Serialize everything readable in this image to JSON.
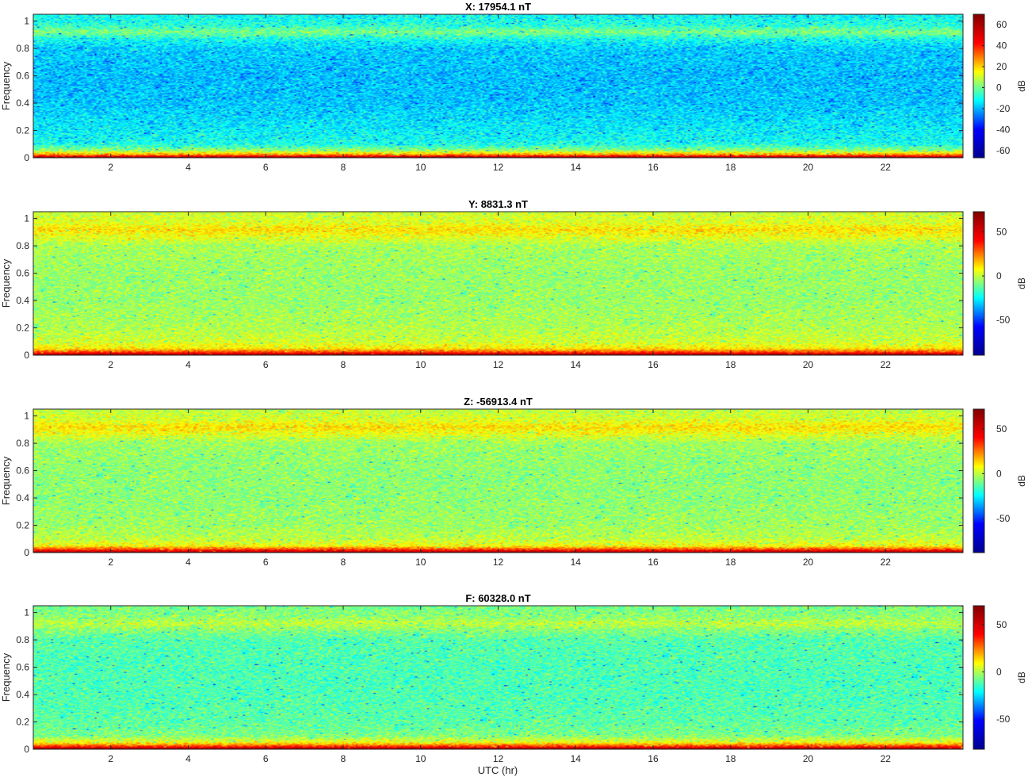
{
  "figure": {
    "xlabel": "UTC (hr)",
    "colormap": [
      "#00008f",
      "#0000ff",
      "#00ffff",
      "#ffff00",
      "#ff0000",
      "#800000"
    ]
  },
  "chart_data": [
    {
      "type": "heatmap",
      "title": "X: 17954.1 nT",
      "xlabel": "",
      "ylabel": "Frequency",
      "colorbar_label": "dB",
      "xlim": [
        0,
        24
      ],
      "ylim": [
        0,
        1.05
      ],
      "xticks": [
        2,
        4,
        6,
        8,
        10,
        12,
        14,
        16,
        18,
        20,
        22
      ],
      "yticks": [
        0,
        0.2,
        0.4,
        0.6,
        0.8,
        1
      ],
      "clim": [
        -67,
        70
      ],
      "colorbar_ticks": [
        -60,
        -40,
        -20,
        0,
        20,
        40,
        60
      ],
      "profile": {
        "frequency": [
          0.0,
          0.02,
          0.05,
          0.1,
          0.2,
          0.4,
          0.6,
          0.8,
          0.87,
          0.92,
          0.97,
          1.05
        ],
        "mean_db": [
          70,
          30,
          5,
          -10,
          -13,
          -18,
          -19,
          -17,
          -10,
          2,
          -8,
          -12
        ]
      }
    },
    {
      "type": "heatmap",
      "title": "Y: 8831.3 nT",
      "xlabel": "",
      "ylabel": "Frequency",
      "colorbar_label": "dB",
      "xlim": [
        0,
        24
      ],
      "ylim": [
        0,
        1.05
      ],
      "xticks": [
        2,
        4,
        6,
        8,
        10,
        12,
        14,
        16,
        18,
        20,
        22
      ],
      "yticks": [
        0,
        0.2,
        0.4,
        0.6,
        0.8,
        1
      ],
      "clim": [
        -90,
        73
      ],
      "colorbar_ticks": [
        -50,
        0,
        50
      ],
      "profile": {
        "frequency": [
          0.0,
          0.02,
          0.05,
          0.1,
          0.2,
          0.4,
          0.6,
          0.8,
          0.87,
          0.92,
          0.97,
          1.05
        ],
        "mean_db": [
          72,
          35,
          10,
          2,
          -2,
          -5,
          -5,
          -3,
          6,
          12,
          4,
          2
        ]
      }
    },
    {
      "type": "heatmap",
      "title": "Z: -56913.4 nT",
      "xlabel": "",
      "ylabel": "Frequency",
      "colorbar_label": "dB",
      "xlim": [
        0,
        24
      ],
      "ylim": [
        0,
        1.05
      ],
      "xticks": [
        2,
        4,
        6,
        8,
        10,
        12,
        14,
        16,
        18,
        20,
        22
      ],
      "yticks": [
        0,
        0.2,
        0.4,
        0.6,
        0.8,
        1
      ],
      "clim": [
        -88,
        72
      ],
      "colorbar_ticks": [
        -50,
        0,
        50
      ],
      "profile": {
        "frequency": [
          0.0,
          0.02,
          0.05,
          0.1,
          0.2,
          0.4,
          0.6,
          0.8,
          0.87,
          0.92,
          0.97,
          1.05
        ],
        "mean_db": [
          70,
          35,
          8,
          0,
          -4,
          -6,
          -6,
          -4,
          6,
          12,
          4,
          0
        ]
      }
    },
    {
      "type": "heatmap",
      "title": "F: 60328.0 nT",
      "xlabel": "UTC (hr)",
      "ylabel": "Frequency",
      "colorbar_label": "dB",
      "xlim": [
        0,
        24
      ],
      "ylim": [
        0,
        1.05
      ],
      "xticks": [
        2,
        4,
        6,
        8,
        10,
        12,
        14,
        16,
        18,
        20,
        22
      ],
      "yticks": [
        0,
        0.2,
        0.4,
        0.6,
        0.8,
        1
      ],
      "clim": [
        -82,
        70
      ],
      "colorbar_ticks": [
        -50,
        0,
        50
      ],
      "profile": {
        "frequency": [
          0.0,
          0.02,
          0.05,
          0.1,
          0.2,
          0.4,
          0.6,
          0.8,
          0.87,
          0.92,
          0.97,
          1.05
        ],
        "mean_db": [
          70,
          35,
          8,
          -6,
          -10,
          -12,
          -12,
          -11,
          -5,
          2,
          -4,
          -7
        ]
      }
    }
  ]
}
